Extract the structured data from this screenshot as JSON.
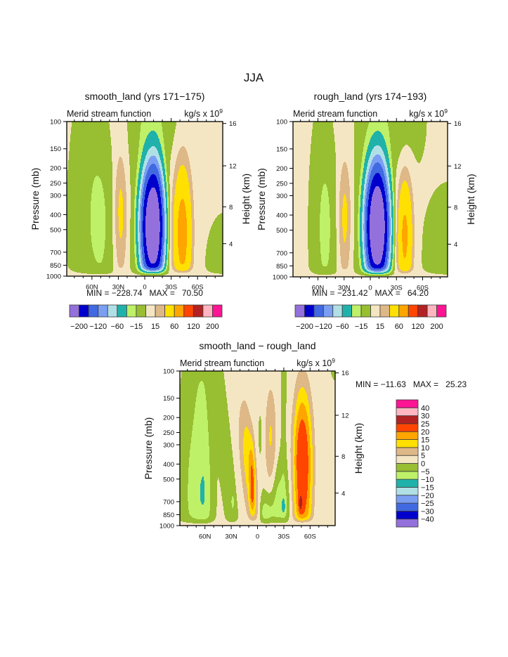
{
  "page": {
    "title": "JJA"
  },
  "palette": [
    "#9370DB",
    "#0000CD",
    "#4169E1",
    "#7A9EF2",
    "#B0E0E6",
    "#20B2AA",
    "#BEF068",
    "#98BE32",
    "#F5E6C3",
    "#DEB887",
    "#FFE000",
    "#FFA500",
    "#FF4500",
    "#B22222",
    "#FFB6C1",
    "#FF1493"
  ],
  "chart_data": [
    {
      "type": "heatmap",
      "subtype": "filled-contour",
      "title": "smooth_land (yrs 171−175)",
      "left_string": "Merid stream function",
      "right_string": {
        "base": "kg/s x 10",
        "exponent": "9"
      },
      "xlabel": "",
      "ylabel": "Pressure (mb)",
      "y2label": "Height (km)",
      "xlim": [
        88.6,
        -88.6
      ],
      "x_ticks": [
        {
          "lat": 60,
          "label": "60N"
        },
        {
          "lat": 30,
          "label": "30N"
        },
        {
          "lat": 0,
          "label": "0"
        },
        {
          "lat": -30,
          "label": "30S"
        },
        {
          "lat": -60,
          "label": "60S"
        }
      ],
      "x_minor_step": 10,
      "y_scale": "log",
      "ylim": [
        1000,
        100
      ],
      "y_ticks": [
        100,
        150,
        200,
        250,
        300,
        400,
        500,
        700,
        850,
        1000
      ],
      "y2_ticks_km": [
        4,
        8,
        12,
        16
      ],
      "levels": [
        -200,
        -160,
        -120,
        -90,
        -60,
        -30,
        -15,
        0,
        15,
        30,
        60,
        90,
        120,
        160,
        200
      ],
      "colorbar": {
        "orientation": "horizontal",
        "labels": [
          "−200",
          "",
          "−120",
          "",
          "−60",
          "",
          "−15",
          "",
          "15",
          "",
          "60",
          "",
          "120",
          "",
          "200"
        ]
      },
      "min": -228.74,
      "max": 70.5,
      "stats_text": "MIN = −228.74   MAX =   70.50",
      "field": {
        "bias": 1.5,
        "surface_taper": 0.04,
        "features": [
          {
            "lat": -10,
            "p": 479,
            "amp": -222,
            "w_n": 16,
            "w_s": 13.5,
            "w_up": 0.45,
            "w_dn": 0.45,
            "shape": 3.3
          },
          {
            "lat": -12,
            "p": 100,
            "amp": -14,
            "w_n": 26,
            "w_s": 22,
            "w_up": 0.3,
            "w_dn": 0.3,
            "shape": 2
          },
          {
            "lat": 0,
            "p": 500,
            "amp": -12,
            "w_n": 14,
            "w_s": 20,
            "w_up": 0.9,
            "w_dn": 0.7,
            "shape": 2.5
          },
          {
            "lat": -42.7,
            "p": 525,
            "amp": 69,
            "w_n": 11.2,
            "w_s": 11.2,
            "w_up": 0.47,
            "w_dn": 0.47,
            "shape": 2.4
          },
          {
            "lat": 27.5,
            "p": 398,
            "amp": 33,
            "w_n": 7.5,
            "w_s": 7.5,
            "w_up": 0.37,
            "w_dn": 0.42,
            "shape": 2.4
          },
          {
            "lat": 51,
            "p": 447,
            "amp": -20,
            "w_n": 24,
            "w_s": 15,
            "w_up": 0.55,
            "w_dn": 0.62,
            "shape": 2
          },
          {
            "lat": 62,
            "p": 120,
            "amp": -6,
            "w_n": 14,
            "w_s": 14,
            "w_up": 0.3,
            "w_dn": 0.3,
            "shape": 2
          },
          {
            "lat": 30,
            "p": 100,
            "amp": 5,
            "w_n": 12,
            "w_s": 10,
            "w_up": 0.3,
            "w_dn": 0.4,
            "shape": 2
          },
          {
            "lat": -90,
            "p": 891,
            "amp": -12,
            "w_n": 15,
            "w_s": 15,
            "w_up": 0.25,
            "w_dn": 0.35,
            "shape": 2
          }
        ]
      }
    },
    {
      "type": "heatmap",
      "subtype": "filled-contour",
      "title": "rough_land (yrs 174−193)",
      "left_string": "Merid stream function",
      "right_string": {
        "base": "kg/s x 10",
        "exponent": "9"
      },
      "xlabel": "",
      "ylabel": "Pressure (mb)",
      "y2label": "Height (km)",
      "xlim": [
        88.6,
        -88.6
      ],
      "x_ticks": [
        {
          "lat": 60,
          "label": "60N"
        },
        {
          "lat": 30,
          "label": "30N"
        },
        {
          "lat": 0,
          "label": "0"
        },
        {
          "lat": -30,
          "label": "30S"
        },
        {
          "lat": -60,
          "label": "60S"
        }
      ],
      "x_minor_step": 10,
      "y_scale": "log",
      "ylim": [
        1000,
        100
      ],
      "y_ticks": [
        100,
        150,
        200,
        250,
        300,
        400,
        500,
        700,
        850,
        1000
      ],
      "y2_ticks_km": [
        4,
        8,
        12,
        16
      ],
      "levels": [
        -200,
        -160,
        -120,
        -90,
        -60,
        -30,
        -15,
        0,
        15,
        30,
        60,
        90,
        120,
        160,
        200
      ],
      "colorbar": {
        "orientation": "horizontal",
        "labels": [
          "−200",
          "",
          "−120",
          "",
          "−60",
          "",
          "−15",
          "",
          "15",
          "",
          "60",
          "",
          "120",
          "",
          "200"
        ]
      },
      "min": -231.42,
      "max": 64.2,
      "stats_text": "MIN = −231.42   MAX =   64.20",
      "field": {
        "bias": 1.5,
        "surface_taper": 0.04,
        "features": [
          {
            "lat": -8.5,
            "p": 479,
            "amp": -225,
            "w_n": 16,
            "w_s": 15,
            "w_up": 0.46,
            "w_dn": 0.45,
            "shape": 3.3
          },
          {
            "lat": -20,
            "p": 100,
            "amp": -14,
            "w_n": 26,
            "w_s": 30,
            "w_up": 0.3,
            "w_dn": 0.32,
            "shape": 2
          },
          {
            "lat": 4,
            "p": 500,
            "amp": -12,
            "w_n": 14,
            "w_s": 20,
            "w_up": 0.9,
            "w_dn": 0.7,
            "shape": 2.5
          },
          {
            "lat": -39.5,
            "p": 537,
            "amp": 63,
            "w_n": 9,
            "w_s": 9.5,
            "w_up": 0.4,
            "w_dn": 0.45,
            "shape": 2.4
          },
          {
            "lat": 29.4,
            "p": 417,
            "amp": 32,
            "w_n": 7.5,
            "w_s": 7.5,
            "w_up": 0.35,
            "w_dn": 0.42,
            "shape": 2.4
          },
          {
            "lat": 52,
            "p": 479,
            "amp": -21,
            "w_n": 12,
            "w_s": 12,
            "w_up": 0.58,
            "w_dn": 0.6,
            "shape": 2
          },
          {
            "lat": 28,
            "p": 100,
            "amp": 5,
            "w_n": 14,
            "w_s": 10,
            "w_up": 0.3,
            "w_dn": 0.4,
            "shape": 2
          },
          {
            "lat": -90,
            "p": 708,
            "amp": -12,
            "w_n": 22,
            "w_s": 22,
            "w_up": 0.32,
            "w_dn": 0.5,
            "shape": 2
          },
          {
            "lat": 92,
            "p": 155,
            "amp": -4,
            "w_n": 3,
            "w_s": 3,
            "w_up": 0.12,
            "w_dn": 0.12,
            "shape": 2
          }
        ]
      }
    },
    {
      "type": "heatmap",
      "subtype": "filled-contour",
      "title": "smooth_land − rough_land",
      "left_string": "Merid stream function",
      "right_string": {
        "base": "kg/s x 10",
        "exponent": "9"
      },
      "xlabel": "",
      "ylabel": "Pressure (mb)",
      "y2label": "Height (km)",
      "xlim": [
        88.6,
        -88.6
      ],
      "x_ticks": [
        {
          "lat": 60,
          "label": "60N"
        },
        {
          "lat": 30,
          "label": "30N"
        },
        {
          "lat": 0,
          "label": "0"
        },
        {
          "lat": -30,
          "label": "30S"
        },
        {
          "lat": -60,
          "label": "60S"
        }
      ],
      "x_minor_step": 10,
      "y_scale": "log",
      "ylim": [
        1000,
        100
      ],
      "y_ticks": [
        100,
        150,
        200,
        250,
        300,
        400,
        500,
        700,
        850,
        1000
      ],
      "y2_ticks_km": [
        4,
        8,
        12,
        16
      ],
      "levels": [
        -40,
        -30,
        -25,
        -20,
        -15,
        -10,
        -5,
        0,
        5,
        10,
        15,
        20,
        25,
        30,
        40
      ],
      "colorbar": {
        "orientation": "vertical",
        "labels": [
          "−40",
          "−30",
          "−25",
          "−20",
          "−15",
          "−10",
          "−5",
          "0",
          "5",
          "10",
          "15",
          "20",
          "25",
          "30",
          "40"
        ]
      },
      "min": -11.63,
      "max": 25.23,
      "stats_text": "MIN = −11.63   MAX =   25.23",
      "field": {
        "bias": 1,
        "surface_taper": 0.04,
        "features": [
          {
            "lat": 62,
            "p": 631,
            "amp": -11.3,
            "w_n": 22,
            "w_s": 10,
            "w_up": 0.65,
            "w_dn": 0.4,
            "shape": 2
          },
          {
            "lat": 37,
            "p": 398,
            "tilt": -19,
            "amp": -5.5,
            "w_n": 6,
            "w_s": 8,
            "w_up": 1.0,
            "w_dn": 0.6,
            "shape": 2
          },
          {
            "lat": 28,
            "p": 700,
            "amp": -4.5,
            "w_n": 1.8,
            "w_s": 1.8,
            "w_up": 0.05,
            "w_dn": 0.05,
            "shape": 2
          },
          {
            "lat": 65,
            "p": 100,
            "amp": -3,
            "w_n": 14,
            "w_s": 14,
            "w_up": 0.3,
            "w_dn": 0.35,
            "shape": 2
          },
          {
            "lat": 9,
            "p": 398,
            "tilt": -15,
            "amp": 13,
            "w_n": 10,
            "w_s": 7,
            "w_up": 0.38,
            "w_dn": 0.45,
            "shape": 2.2
          },
          {
            "lat": 6,
            "p": 631,
            "amp": 11,
            "w_n": 3,
            "w_s": 3,
            "w_up": 0.3,
            "w_dn": 0.12,
            "shape": 2
          },
          {
            "lat": -51,
            "p": 398,
            "amp": 24,
            "w_n": 11,
            "w_s": 12,
            "w_up": 0.5,
            "w_dn": 0.6,
            "shape": 2.6
          },
          {
            "lat": -49,
            "p": 724,
            "amp": 6,
            "w_n": 2,
            "w_s": 2,
            "w_up": 0.05,
            "w_dn": 0.05,
            "shape": 2
          },
          {
            "lat": -25,
            "p": 708,
            "amp": -8,
            "w_n": 12,
            "w_s": 12,
            "w_up": 0.25,
            "w_dn": 0.2,
            "shape": 2
          },
          {
            "lat": -30,
            "p": 759,
            "amp": -5,
            "w_n": 3,
            "w_s": 3,
            "w_up": 0.07,
            "w_dn": 0.06,
            "shape": 2
          },
          {
            "lat": -30,
            "p": 158,
            "amp": -3,
            "w_n": 3,
            "w_s": 3,
            "w_up": 0.6,
            "w_dn": 0.8,
            "shape": 2
          },
          {
            "lat": -15,
            "p": 282,
            "amp": 9.5,
            "w_n": 6.5,
            "w_s": 6.5,
            "w_up": 0.35,
            "w_dn": 0.35,
            "shape": 2.4
          },
          {
            "lat": -3,
            "p": 263,
            "amp": -3,
            "w_n": 2,
            "w_s": 2,
            "w_up": 0.13,
            "w_dn": 0.13,
            "shape": 2
          },
          {
            "lat": -8,
            "p": 851,
            "amp": -8,
            "w_n": 6,
            "w_s": 10,
            "w_up": 0.12,
            "w_dn": 0.2,
            "shape": 2
          },
          {
            "lat": -90,
            "p": 100,
            "amp": -3,
            "w_n": 6,
            "w_s": 6,
            "w_up": 0.1,
            "w_dn": 0.06,
            "shape": 2
          }
        ]
      }
    }
  ]
}
